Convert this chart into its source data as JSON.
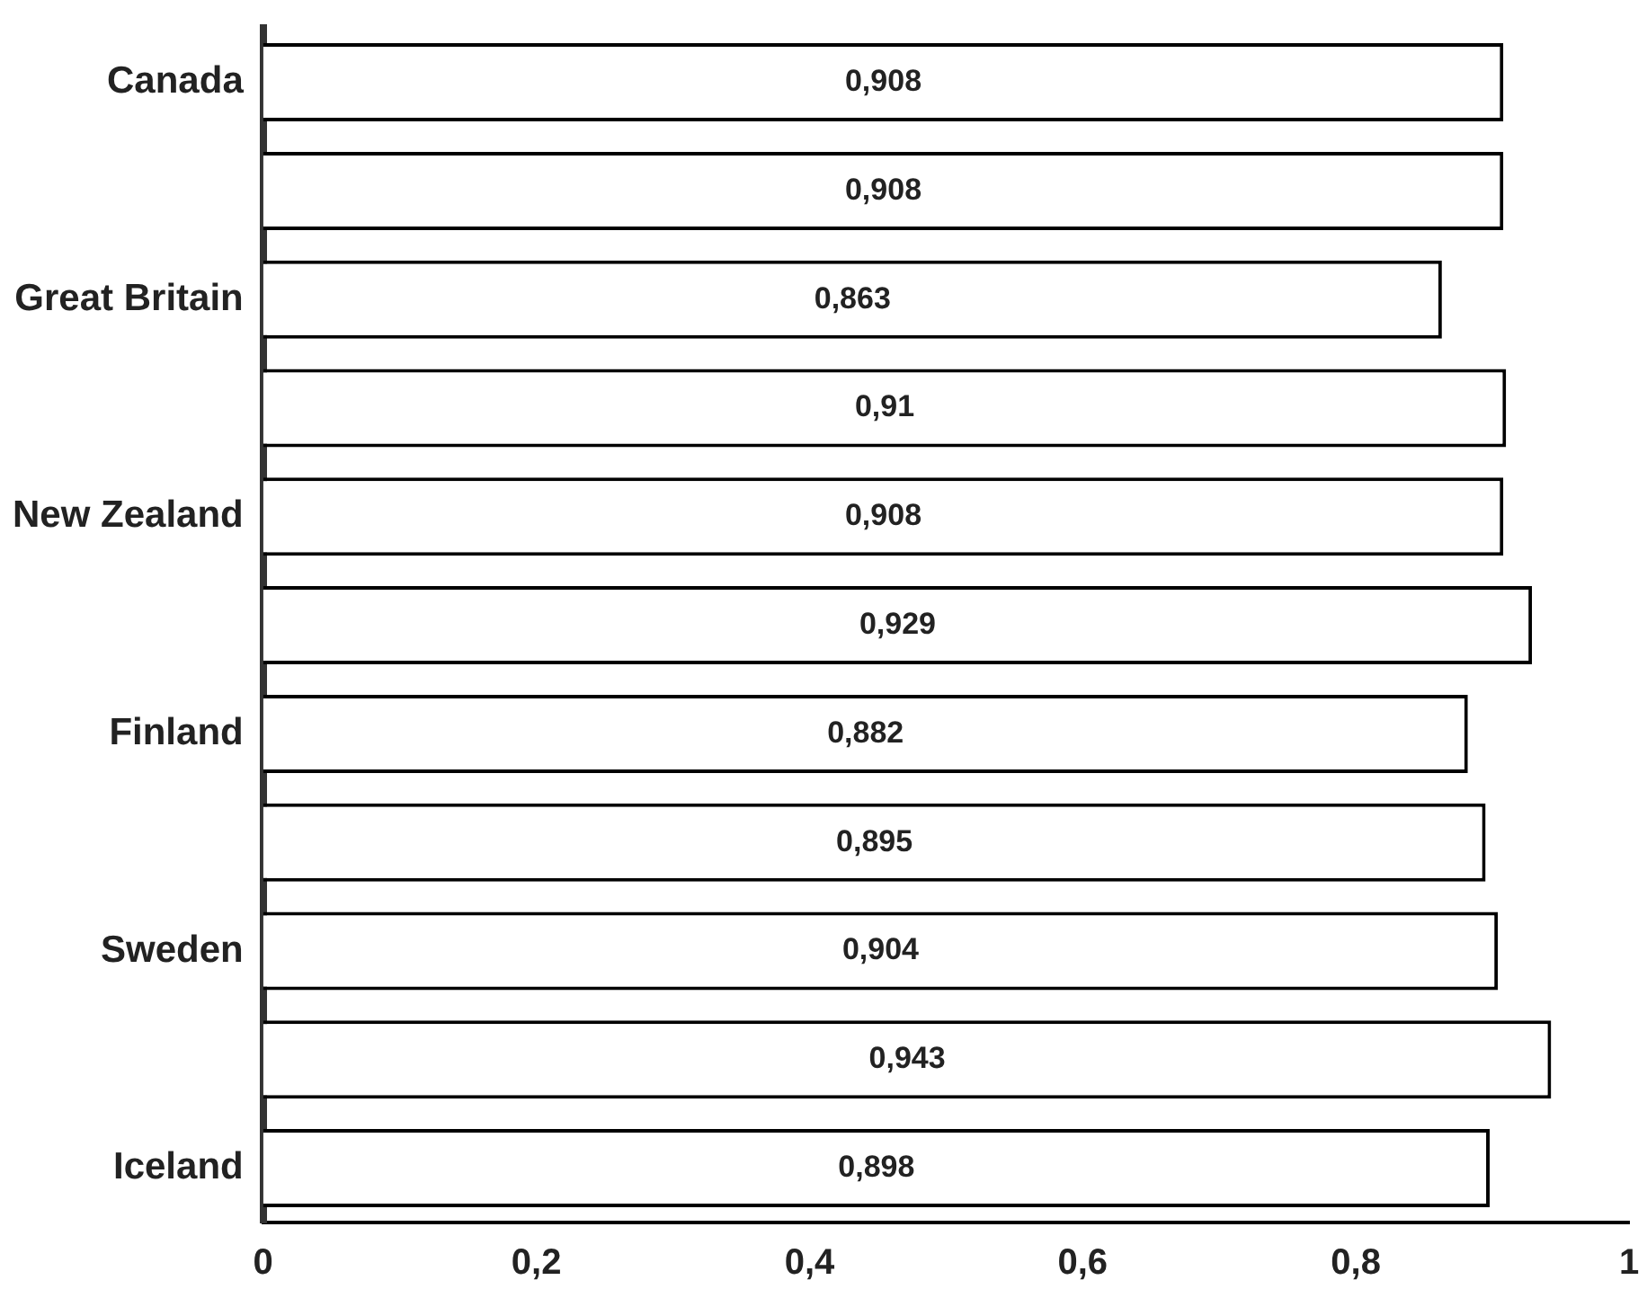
{
  "chart_data": {
    "type": "bar",
    "orientation": "horizontal",
    "categories": [
      "Canada",
      null,
      "Great Britain",
      null,
      "New Zealand",
      null,
      "Finland",
      null,
      "Sweden",
      null,
      "Iceland"
    ],
    "values": [
      0.908,
      0.908,
      0.863,
      0.91,
      0.908,
      0.929,
      0.882,
      0.895,
      0.904,
      0.943,
      0.898
    ],
    "value_labels": [
      "0,908",
      "0,908",
      "0,863",
      "0,91",
      "0,908",
      "0,929",
      "0,882",
      "0,895",
      "0,904",
      "0,943",
      "0,898"
    ],
    "color": "#ffffff",
    "xlim": [
      0,
      1
    ],
    "xticks": [
      0,
      {
        "value": 0.2,
        "label": "0,2"
      },
      {
        "value": 0.4,
        "label": "0,4"
      },
      {
        "value": 0.6,
        "label": "0,6"
      },
      {
        "value": 0.8,
        "label": "0,8"
      },
      1
    ],
    "grid": false,
    "legend": false
  }
}
